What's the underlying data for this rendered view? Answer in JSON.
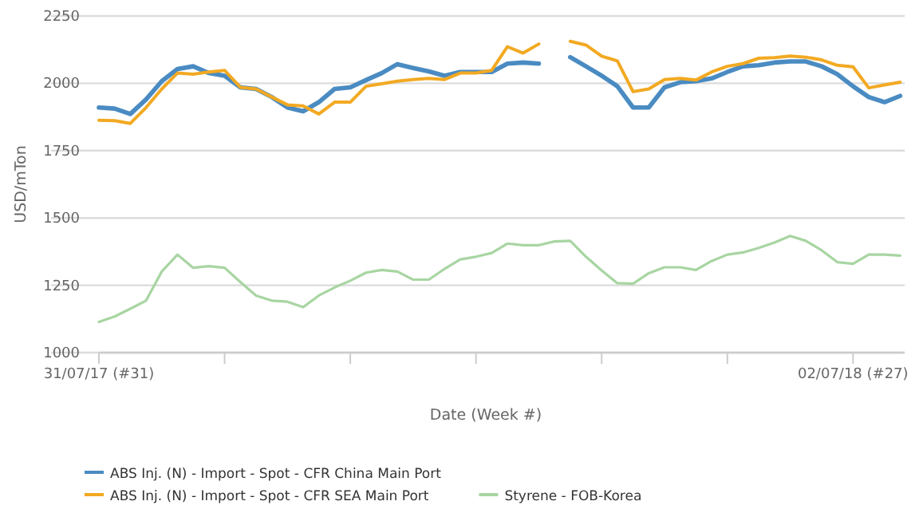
{
  "chart_data": {
    "type": "line",
    "xlabel": "Date (Week #)",
    "ylabel": "USD/mTon",
    "x": [
      "2017-07-31",
      "2017-08-07",
      "2017-08-14",
      "2017-08-21",
      "2017-08-28",
      "2017-09-04",
      "2017-09-11",
      "2017-09-18",
      "2017-09-25",
      "2017-10-02",
      "2017-10-09",
      "2017-10-16",
      "2017-10-23",
      "2017-10-30",
      "2017-11-06",
      "2017-11-13",
      "2017-11-20",
      "2017-11-27",
      "2017-12-04",
      "2017-12-11",
      "2017-12-18",
      "2017-12-25",
      "2018-01-01",
      "2018-01-08",
      "2018-01-15",
      "2018-01-22",
      "2018-01-29",
      "2018-02-05",
      "2018-02-12",
      "2018-02-19",
      "2018-02-26",
      "2018-03-05",
      "2018-03-12",
      "2018-03-19",
      "2018-03-26",
      "2018-04-02",
      "2018-04-09",
      "2018-04-16",
      "2018-04-23",
      "2018-04-30",
      "2018-05-07",
      "2018-05-14",
      "2018-05-21",
      "2018-05-28",
      "2018-06-04",
      "2018-06-11",
      "2018-06-18",
      "2018-06-25",
      "2018-07-02",
      "2018-07-09",
      "2018-07-16",
      "2018-07-23"
    ],
    "series": [
      {
        "name": "ABS Inj. (N) - Import - Spot - CFR China Main Port",
        "color": "#4a8bc2",
        "values": [
          1910,
          1906,
          1886,
          1940,
          2008,
          2053,
          2063,
          2038,
          2028,
          1985,
          1979,
          1949,
          1910,
          1896,
          1930,
          1979,
          1985,
          2012,
          2038,
          2071,
          2057,
          2044,
          2028,
          2042,
          2042,
          2042,
          2073,
          2077,
          2073,
          null,
          2097,
          2063,
          2028,
          1989,
          1910,
          1910,
          1985,
          2004,
          2008,
          2018,
          2042,
          2063,
          2067,
          2077,
          2081,
          2081,
          2063,
          2034,
          1989,
          1949,
          1930,
          1953
        ]
      },
      {
        "name": "ABS Inj. (N) - Import - Spot - CFR SEA Main Port",
        "color": "#f2a922",
        "values": [
          1863,
          1861,
          1851,
          1910,
          1979,
          2038,
          2034,
          2042,
          2048,
          1985,
          1979,
          1949,
          1920,
          1916,
          1886,
          1930,
          1930,
          1989,
          1998,
          2008,
          2014,
          2018,
          2014,
          2038,
          2038,
          2048,
          2136,
          2112,
          2146,
          null,
          2156,
          2142,
          2101,
          2083,
          1969,
          1979,
          2014,
          2018,
          2012,
          2042,
          2063,
          2073,
          2093,
          2095,
          2101,
          2097,
          2087,
          2067,
          2061,
          1983,
          1994,
          2004
        ]
      },
      {
        "name": "Styrene - FOB-Korea",
        "color": "#a8d5a2",
        "values": [
          1114,
          1134,
          1163,
          1193,
          1301,
          1364,
          1315,
          1321,
          1315,
          1262,
          1212,
          1193,
          1189,
          1169,
          1212,
          1242,
          1267,
          1297,
          1307,
          1301,
          1271,
          1271,
          1311,
          1346,
          1356,
          1370,
          1405,
          1399,
          1399,
          1413,
          1415,
          1356,
          1305,
          1258,
          1256,
          1295,
          1317,
          1317,
          1307,
          1340,
          1364,
          1372,
          1389,
          1409,
          1433,
          1415,
          1380,
          1336,
          1330,
          1364,
          1364,
          1360
        ]
      }
    ],
    "xlim": [
      "2017-07-31",
      "2018-07-25"
    ],
    "xticks": [
      {
        "value": "2017-07-31",
        "label": "31/07/17 (#31)"
      },
      {
        "value": "2017-09-25",
        "label": null
      },
      {
        "value": "2017-11-20",
        "label": null
      },
      {
        "value": "2018-01-15",
        "label": null
      },
      {
        "value": "2018-03-12",
        "label": null
      },
      {
        "value": "2018-05-07",
        "label": null
      },
      {
        "value": "2018-07-02",
        "label": "02/07/18 (#27)"
      }
    ],
    "ylim": [
      1000,
      2250
    ],
    "yticks": [
      1000,
      1250,
      1500,
      1750,
      2000,
      2250
    ],
    "grid": "y",
    "legend": "bottom",
    "marker": "none",
    "line_style": "solid"
  }
}
